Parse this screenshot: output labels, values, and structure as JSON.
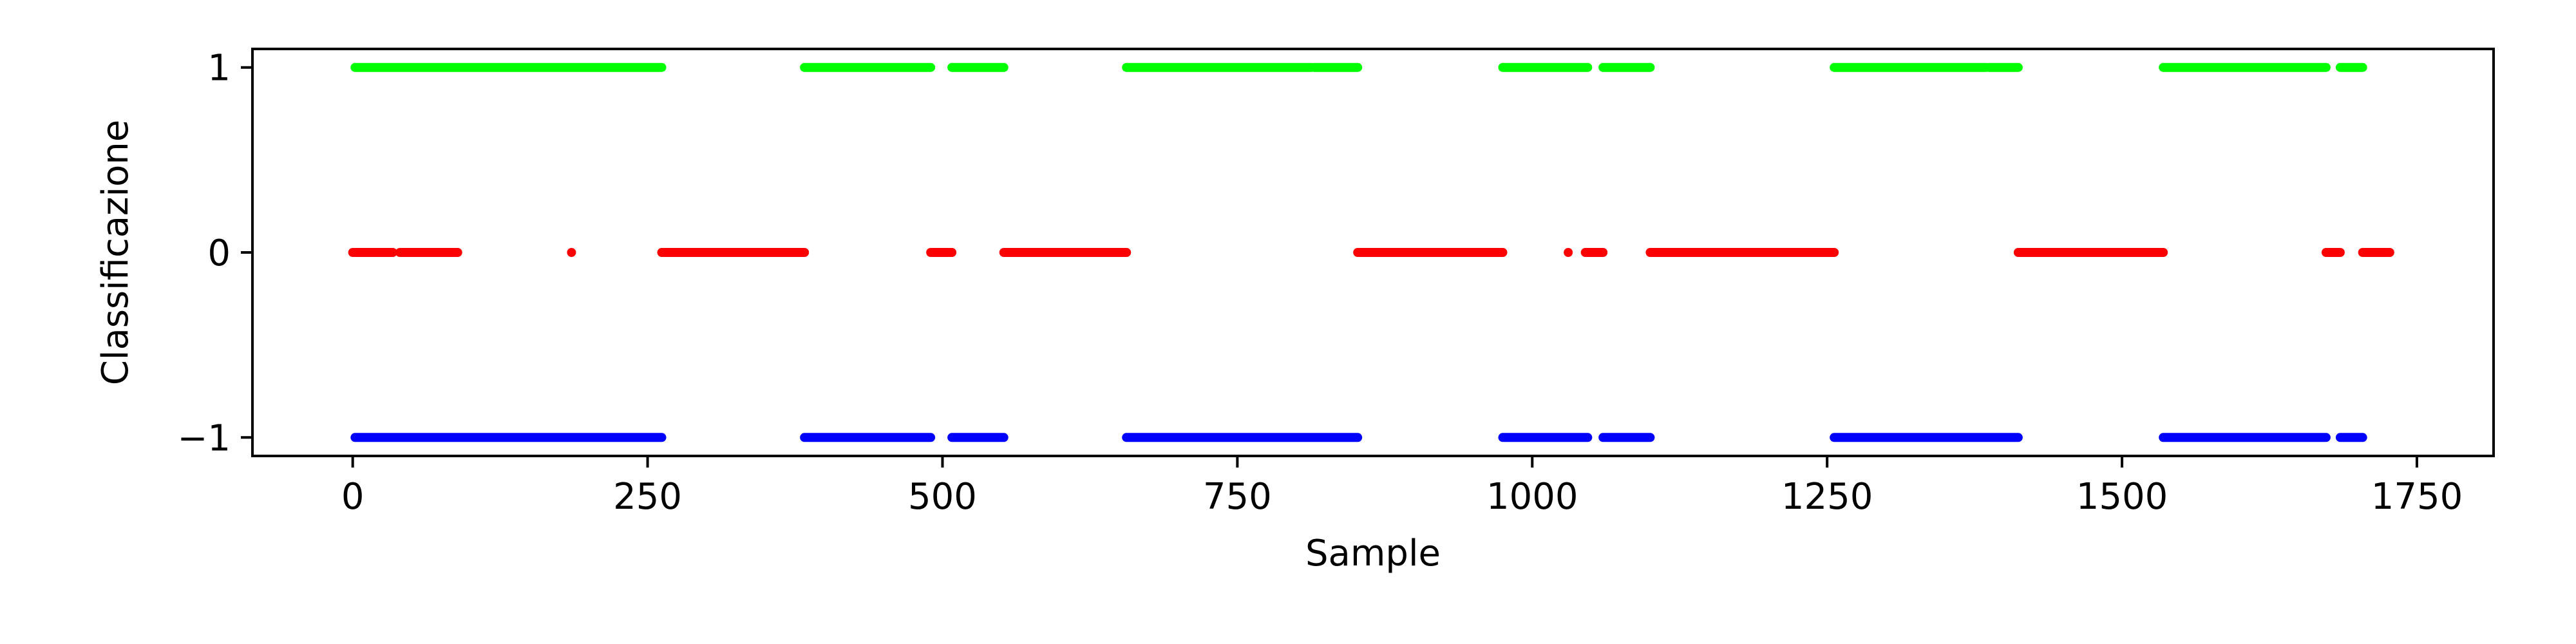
{
  "chart_data": {
    "type": "scatter",
    "title": "",
    "xlabel": "Sample",
    "ylabel": "Classificazione",
    "xlim": [
      -85,
      1815
    ],
    "ylim": [
      -1.1,
      1.1
    ],
    "xticks": [
      0,
      250,
      500,
      750,
      1000,
      1250,
      1500,
      1750
    ],
    "xtick_labels": [
      "0",
      "250",
      "500",
      "750",
      "1000",
      "1250",
      "1500",
      "1750"
    ],
    "yticks": [
      -1,
      0,
      1
    ],
    "ytick_labels": [
      "−1",
      "0",
      "1"
    ],
    "grid": false,
    "series": [
      {
        "name": "1",
        "value": 1,
        "color": "#00ff00",
        "ranges": [
          [
            2,
            262
          ],
          [
            383,
            490
          ],
          [
            508,
            552
          ],
          [
            656,
            813
          ],
          [
            815,
            852
          ],
          [
            975,
            1047
          ],
          [
            1060,
            1100
          ],
          [
            1256,
            1385
          ],
          [
            1387,
            1412
          ],
          [
            1535,
            1673
          ],
          [
            1685,
            1704
          ]
        ]
      },
      {
        "name": "0",
        "value": 0,
        "color": "#ff0000",
        "ranges": [
          [
            0,
            34
          ],
          [
            40,
            89
          ],
          [
            185,
            186
          ],
          [
            262,
            383
          ],
          [
            490,
            508
          ],
          [
            552,
            656
          ],
          [
            852,
            975
          ],
          [
            1030,
            1031
          ],
          [
            1045,
            1060
          ],
          [
            1100,
            1256
          ],
          [
            1412,
            1535
          ],
          [
            1673,
            1685
          ],
          [
            1704,
            1727
          ]
        ]
      },
      {
        "name": "-1",
        "value": -1,
        "color": "#0000ff",
        "ranges": [
          [
            2,
            262
          ],
          [
            383,
            490
          ],
          [
            508,
            552
          ],
          [
            656,
            852
          ],
          [
            975,
            1047
          ],
          [
            1060,
            1100
          ],
          [
            1256,
            1412
          ],
          [
            1535,
            1673
          ],
          [
            1685,
            1704
          ]
        ]
      }
    ]
  }
}
